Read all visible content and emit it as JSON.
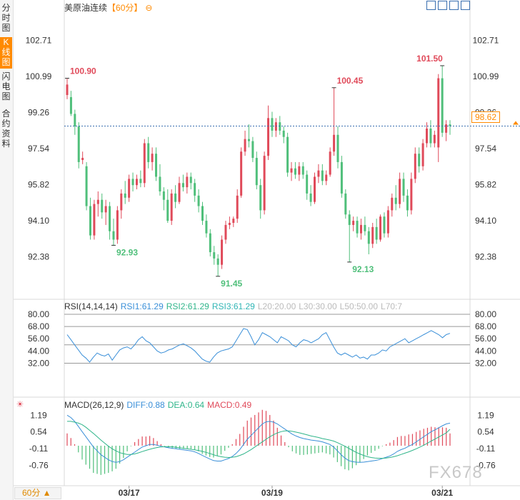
{
  "sidebar": {
    "tabs": [
      {
        "label": "分时图",
        "active": false
      },
      {
        "label": "K线图",
        "active": true
      },
      {
        "label": "闪电图",
        "active": false
      },
      {
        "label": "合约资料",
        "active": false
      }
    ]
  },
  "header": {
    "symbol": "美原油连续",
    "period_tag": "【60分】",
    "toggle_glyph": "⊖"
  },
  "current_price": "98.62",
  "period_button": "60分 ▲",
  "watermark": "FX678",
  "colors": {
    "up": "#e04a5a",
    "down": "#4fbf7a",
    "accent": "#ff8a00",
    "rsi": "#3a8fd8",
    "diff": "#3a8fd8",
    "dea": "#2fb58a"
  },
  "chart_data": [
    {
      "type": "candlestick",
      "title": "美原油连续【60分】",
      "ylim": [
        90.66,
        104.43
      ],
      "yticks": [
        102.71,
        100.99,
        99.26,
        97.54,
        95.82,
        94.1,
        92.38
      ],
      "xticks": [
        "03/17",
        "03/19",
        "03/21"
      ],
      "current_price": 98.62,
      "annotations": [
        {
          "text": "100.90",
          "value": 100.9
        },
        {
          "text": "92.93",
          "value": 92.93
        },
        {
          "text": "91.45",
          "value": 91.45
        },
        {
          "text": "100.45",
          "value": 100.45
        },
        {
          "text": "92.13",
          "value": 92.13
        },
        {
          "text": "101.50",
          "value": 101.5
        }
      ],
      "candles": [
        {
          "o": 100.1,
          "h": 100.9,
          "l": 99.9,
          "c": 100.6
        },
        {
          "o": 100.0,
          "h": 100.3,
          "l": 99.1,
          "c": 99.2
        },
        {
          "o": 99.2,
          "h": 99.4,
          "l": 98.2,
          "c": 98.6
        },
        {
          "o": 98.6,
          "h": 98.8,
          "l": 96.6,
          "c": 96.9
        },
        {
          "o": 97.0,
          "h": 97.4,
          "l": 96.8,
          "c": 97.1
        },
        {
          "o": 96.7,
          "h": 96.9,
          "l": 94.6,
          "c": 94.8
        },
        {
          "o": 94.8,
          "h": 95.2,
          "l": 93.2,
          "c": 93.4
        },
        {
          "o": 93.4,
          "h": 95.1,
          "l": 93.2,
          "c": 94.9
        },
        {
          "o": 94.9,
          "h": 95.5,
          "l": 94.3,
          "c": 95.1
        },
        {
          "o": 95.1,
          "h": 95.4,
          "l": 94.2,
          "c": 94.5
        },
        {
          "o": 94.5,
          "h": 95.1,
          "l": 93.9,
          "c": 94.8
        },
        {
          "o": 94.8,
          "h": 95.0,
          "l": 93.2,
          "c": 93.6
        },
        {
          "o": 93.6,
          "h": 94.2,
          "l": 92.9,
          "c": 93.2
        },
        {
          "o": 93.2,
          "h": 94.8,
          "l": 93.0,
          "c": 94.6
        },
        {
          "o": 94.6,
          "h": 95.6,
          "l": 94.2,
          "c": 95.4
        },
        {
          "o": 95.4,
          "h": 96.0,
          "l": 94.9,
          "c": 95.2
        },
        {
          "o": 95.2,
          "h": 96.3,
          "l": 95.0,
          "c": 96.1
        },
        {
          "o": 96.1,
          "h": 96.4,
          "l": 95.5,
          "c": 95.8
        },
        {
          "o": 95.8,
          "h": 96.3,
          "l": 95.6,
          "c": 96.1
        },
        {
          "o": 96.1,
          "h": 96.5,
          "l": 95.7,
          "c": 95.9
        },
        {
          "o": 95.9,
          "h": 98.0,
          "l": 95.7,
          "c": 97.8
        },
        {
          "o": 97.8,
          "h": 98.1,
          "l": 96.6,
          "c": 96.9
        },
        {
          "o": 96.9,
          "h": 97.6,
          "l": 96.5,
          "c": 97.3
        },
        {
          "o": 97.3,
          "h": 97.6,
          "l": 96.0,
          "c": 96.2
        },
        {
          "o": 96.2,
          "h": 96.8,
          "l": 95.3,
          "c": 95.5
        },
        {
          "o": 95.5,
          "h": 95.7,
          "l": 94.6,
          "c": 95.1
        },
        {
          "o": 95.1,
          "h": 95.6,
          "l": 94.0,
          "c": 94.1
        },
        {
          "o": 94.1,
          "h": 95.6,
          "l": 93.9,
          "c": 95.4
        },
        {
          "o": 95.4,
          "h": 95.8,
          "l": 94.7,
          "c": 95.0
        },
        {
          "o": 95.0,
          "h": 96.2,
          "l": 94.9,
          "c": 95.9
        },
        {
          "o": 95.9,
          "h": 96.3,
          "l": 95.5,
          "c": 95.7
        },
        {
          "o": 95.7,
          "h": 96.4,
          "l": 95.4,
          "c": 96.2
        },
        {
          "o": 96.2,
          "h": 96.4,
          "l": 95.6,
          "c": 95.9
        },
        {
          "o": 95.9,
          "h": 96.1,
          "l": 95.0,
          "c": 95.3
        },
        {
          "o": 95.3,
          "h": 95.6,
          "l": 94.5,
          "c": 94.8
        },
        {
          "o": 94.8,
          "h": 95.0,
          "l": 93.9,
          "c": 94.1
        },
        {
          "o": 94.1,
          "h": 94.4,
          "l": 93.3,
          "c": 93.5
        },
        {
          "o": 93.5,
          "h": 93.7,
          "l": 92.4,
          "c": 92.6
        },
        {
          "o": 92.6,
          "h": 92.9,
          "l": 92.0,
          "c": 92.3
        },
        {
          "o": 92.3,
          "h": 92.5,
          "l": 91.45,
          "c": 92.0
        },
        {
          "o": 92.0,
          "h": 93.4,
          "l": 91.8,
          "c": 93.2
        },
        {
          "o": 93.2,
          "h": 94.1,
          "l": 93.0,
          "c": 93.9
        },
        {
          "o": 93.9,
          "h": 94.3,
          "l": 93.7,
          "c": 94.0
        },
        {
          "o": 94.0,
          "h": 94.3,
          "l": 93.8,
          "c": 94.2
        },
        {
          "o": 94.2,
          "h": 95.6,
          "l": 94.0,
          "c": 95.3
        },
        {
          "o": 95.3,
          "h": 97.6,
          "l": 95.2,
          "c": 97.4
        },
        {
          "o": 97.4,
          "h": 98.4,
          "l": 97.2,
          "c": 98.0
        },
        {
          "o": 98.0,
          "h": 98.7,
          "l": 97.6,
          "c": 97.9
        },
        {
          "o": 97.9,
          "h": 98.1,
          "l": 96.9,
          "c": 97.1
        },
        {
          "o": 97.1,
          "h": 97.4,
          "l": 95.6,
          "c": 95.8
        },
        {
          "o": 95.8,
          "h": 96.1,
          "l": 94.2,
          "c": 94.6
        },
        {
          "o": 94.6,
          "h": 97.4,
          "l": 94.4,
          "c": 97.2
        },
        {
          "o": 97.2,
          "h": 99.6,
          "l": 97.0,
          "c": 99.0
        },
        {
          "o": 99.0,
          "h": 99.3,
          "l": 98.1,
          "c": 98.4
        },
        {
          "o": 98.4,
          "h": 99.0,
          "l": 98.1,
          "c": 98.8
        },
        {
          "o": 98.8,
          "h": 99.1,
          "l": 98.2,
          "c": 98.4
        },
        {
          "o": 98.4,
          "h": 98.6,
          "l": 97.8,
          "c": 98.1
        },
        {
          "o": 98.1,
          "h": 98.3,
          "l": 96.2,
          "c": 96.4
        },
        {
          "o": 96.4,
          "h": 96.9,
          "l": 96.0,
          "c": 96.6
        },
        {
          "o": 96.6,
          "h": 96.9,
          "l": 96.1,
          "c": 96.3
        },
        {
          "o": 96.3,
          "h": 96.9,
          "l": 96.0,
          "c": 96.7
        },
        {
          "o": 96.7,
          "h": 96.9,
          "l": 96.1,
          "c": 96.3
        },
        {
          "o": 96.3,
          "h": 96.5,
          "l": 95.1,
          "c": 95.4
        },
        {
          "o": 95.4,
          "h": 95.8,
          "l": 94.8,
          "c": 95.0
        },
        {
          "o": 95.0,
          "h": 96.4,
          "l": 94.9,
          "c": 96.2
        },
        {
          "o": 96.2,
          "h": 96.8,
          "l": 95.9,
          "c": 96.5
        },
        {
          "o": 96.5,
          "h": 96.8,
          "l": 95.8,
          "c": 96.0
        },
        {
          "o": 96.0,
          "h": 96.5,
          "l": 95.8,
          "c": 96.3
        },
        {
          "o": 96.3,
          "h": 97.6,
          "l": 96.2,
          "c": 97.4
        },
        {
          "o": 97.4,
          "h": 100.45,
          "l": 97.2,
          "c": 98.2
        },
        {
          "o": 98.2,
          "h": 98.6,
          "l": 96.6,
          "c": 96.9
        },
        {
          "o": 96.9,
          "h": 97.2,
          "l": 95.2,
          "c": 95.4
        },
        {
          "o": 95.4,
          "h": 95.6,
          "l": 94.2,
          "c": 94.4
        },
        {
          "o": 94.4,
          "h": 94.6,
          "l": 92.13,
          "c": 93.9
        },
        {
          "o": 93.9,
          "h": 94.3,
          "l": 93.6,
          "c": 94.1
        },
        {
          "o": 94.1,
          "h": 94.3,
          "l": 93.3,
          "c": 93.5
        },
        {
          "o": 93.5,
          "h": 94.2,
          "l": 93.2,
          "c": 93.9
        },
        {
          "o": 93.9,
          "h": 94.3,
          "l": 93.4,
          "c": 93.6
        },
        {
          "o": 93.6,
          "h": 93.8,
          "l": 92.5,
          "c": 93.0
        },
        {
          "o": 93.0,
          "h": 94.0,
          "l": 92.8,
          "c": 93.8
        },
        {
          "o": 93.8,
          "h": 94.2,
          "l": 93.0,
          "c": 93.2
        },
        {
          "o": 93.2,
          "h": 94.4,
          "l": 93.1,
          "c": 94.3
        },
        {
          "o": 94.3,
          "h": 94.5,
          "l": 93.3,
          "c": 93.5
        },
        {
          "o": 93.5,
          "h": 94.8,
          "l": 93.3,
          "c": 94.6
        },
        {
          "o": 94.6,
          "h": 95.4,
          "l": 94.3,
          "c": 95.2
        },
        {
          "o": 95.2,
          "h": 95.8,
          "l": 94.6,
          "c": 94.9
        },
        {
          "o": 94.9,
          "h": 96.4,
          "l": 94.7,
          "c": 96.1
        },
        {
          "o": 96.1,
          "h": 96.4,
          "l": 95.0,
          "c": 95.3
        },
        {
          "o": 95.3,
          "h": 95.6,
          "l": 94.3,
          "c": 94.6
        },
        {
          "o": 94.6,
          "h": 96.4,
          "l": 94.4,
          "c": 96.1
        },
        {
          "o": 96.1,
          "h": 97.6,
          "l": 95.9,
          "c": 97.3
        },
        {
          "o": 97.3,
          "h": 97.6,
          "l": 96.4,
          "c": 96.7
        },
        {
          "o": 96.7,
          "h": 98.0,
          "l": 96.5,
          "c": 97.8
        },
        {
          "o": 97.8,
          "h": 98.8,
          "l": 97.6,
          "c": 98.5
        },
        {
          "o": 98.5,
          "h": 98.9,
          "l": 97.6,
          "c": 97.8
        },
        {
          "o": 97.8,
          "h": 98.4,
          "l": 97.6,
          "c": 98.2
        },
        {
          "o": 97.6,
          "h": 101.1,
          "l": 96.9,
          "c": 100.9
        },
        {
          "o": 100.9,
          "h": 101.5,
          "l": 98.1,
          "c": 98.3
        },
        {
          "o": 98.3,
          "h": 98.9,
          "l": 97.9,
          "c": 98.7
        },
        {
          "o": 98.7,
          "h": 98.9,
          "l": 98.2,
          "c": 98.62
        }
      ]
    },
    {
      "type": "line",
      "title": "RSI(14,14,14)",
      "legend": [
        {
          "label": "RSI1:61.29",
          "color": "#3a8fd8"
        },
        {
          "label": "RSI2:61.29",
          "color": "#2fb58a"
        },
        {
          "label": "RSI3:61.29",
          "color": "#2fb5b5"
        },
        {
          "label": "L20:20.00",
          "color": "#bbbbbb"
        },
        {
          "label": "L30:30.00",
          "color": "#bbbbbb"
        },
        {
          "label": "L50:50.00",
          "color": "#bbbbbb"
        },
        {
          "label": "L70:7",
          "color": "#bbbbbb"
        }
      ],
      "ylim": [
        20,
        80
      ],
      "yticks": [
        80.0,
        68.0,
        56.0,
        44.0,
        32.0
      ],
      "ref_lines": [
        80,
        68,
        50,
        32
      ],
      "series": [
        {
          "name": "RSI1",
          "values": [
            60,
            55,
            50,
            45,
            40,
            37,
            33,
            38,
            42,
            40,
            39,
            41,
            35,
            40,
            45,
            47,
            48,
            46,
            50,
            55,
            58,
            54,
            52,
            48,
            44,
            42,
            43,
            45,
            46,
            48,
            50,
            51,
            49,
            47,
            44,
            40,
            36,
            34,
            33,
            38,
            42,
            44,
            45,
            46,
            48,
            54,
            60,
            66,
            65,
            58,
            50,
            55,
            62,
            60,
            58,
            55,
            52,
            58,
            56,
            54,
            50,
            48,
            52,
            55,
            54,
            52,
            54,
            56,
            60,
            62,
            55,
            48,
            42,
            40,
            42,
            40,
            38,
            40,
            37,
            38,
            36,
            40,
            40,
            42,
            45,
            44,
            48,
            50,
            52,
            54,
            56,
            52,
            54,
            56,
            58,
            60,
            62,
            64,
            62,
            60,
            57,
            60,
            61.29
          ]
        }
      ]
    },
    {
      "type": "bar",
      "title": "MACD(26,12,9)",
      "legend": [
        {
          "label": "DIFF:0.88",
          "color": "#3a8fd8"
        },
        {
          "label": "DEA:0.64",
          "color": "#2fb58a"
        },
        {
          "label": "MACD:0.49",
          "color": "#e04a5a"
        }
      ],
      "ylim": [
        -1.45,
        1.45
      ],
      "yticks": [
        1.19,
        0.54,
        -0.11,
        -0.76
      ],
      "series": [
        {
          "name": "DIFF",
          "values": [
            1.19,
            1.1,
            0.95,
            0.75,
            0.55,
            0.35,
            0.15,
            -0.05,
            -0.2,
            -0.35,
            -0.45,
            -0.55,
            -0.62,
            -0.65,
            -0.62,
            -0.55,
            -0.45,
            -0.35,
            -0.25,
            -0.15,
            -0.05,
            0.0,
            0.05,
            0.05,
            0.02,
            -0.02,
            -0.05,
            -0.08,
            -0.1,
            -0.12,
            -0.14,
            -0.16,
            -0.18,
            -0.2,
            -0.24,
            -0.3,
            -0.38,
            -0.45,
            -0.52,
            -0.58,
            -0.6,
            -0.6,
            -0.55,
            -0.5,
            -0.42,
            -0.3,
            -0.15,
            0.05,
            0.25,
            0.4,
            0.55,
            0.7,
            0.85,
            0.93,
            0.95,
            0.92,
            0.85,
            0.75,
            0.65,
            0.55,
            0.45,
            0.38,
            0.32,
            0.28,
            0.25,
            0.22,
            0.2,
            0.18,
            0.15,
            0.1,
            0.05,
            -0.05,
            -0.2,
            -0.35,
            -0.48,
            -0.58,
            -0.62,
            -0.64,
            -0.65,
            -0.64,
            -0.62,
            -0.6,
            -0.58,
            -0.55,
            -0.5,
            -0.45,
            -0.4,
            -0.32,
            -0.22,
            -0.15,
            -0.1,
            -0.02,
            0.05,
            0.15,
            0.25,
            0.35,
            0.45,
            0.55,
            0.62,
            0.7,
            0.78,
            0.85,
            0.88
          ]
        },
        {
          "name": "DEA",
          "values": [
            0.95,
            0.95,
            0.92,
            0.88,
            0.82,
            0.72,
            0.6,
            0.48,
            0.35,
            0.22,
            0.1,
            -0.02,
            -0.12,
            -0.2,
            -0.27,
            -0.31,
            -0.34,
            -0.34,
            -0.32,
            -0.28,
            -0.23,
            -0.18,
            -0.14,
            -0.1,
            -0.07,
            -0.05,
            -0.04,
            -0.04,
            -0.04,
            -0.06,
            -0.08,
            -0.1,
            -0.12,
            -0.14,
            -0.16,
            -0.19,
            -0.22,
            -0.26,
            -0.3,
            -0.35,
            -0.4,
            -0.43,
            -0.45,
            -0.46,
            -0.45,
            -0.43,
            -0.38,
            -0.32,
            -0.24,
            -0.15,
            -0.05,
            0.05,
            0.15,
            0.25,
            0.35,
            0.43,
            0.5,
            0.55,
            0.58,
            0.58,
            0.56,
            0.53,
            0.5,
            0.46,
            0.42,
            0.38,
            0.35,
            0.32,
            0.28,
            0.25,
            0.22,
            0.18,
            0.12,
            0.05,
            -0.02,
            -0.1,
            -0.18,
            -0.26,
            -0.32,
            -0.38,
            -0.43,
            -0.46,
            -0.48,
            -0.49,
            -0.49,
            -0.48,
            -0.46,
            -0.43,
            -0.39,
            -0.34,
            -0.29,
            -0.24,
            -0.18,
            -0.12,
            -0.05,
            0.02,
            0.1,
            0.18,
            0.26,
            0.34,
            0.42,
            0.5,
            0.64
          ]
        }
      ]
    }
  ]
}
